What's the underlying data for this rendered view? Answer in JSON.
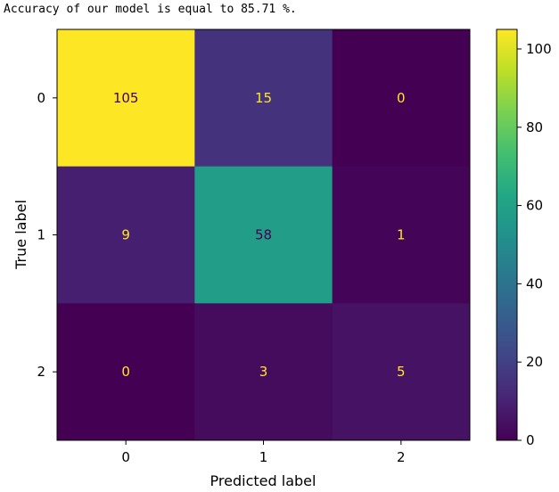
{
  "output": {
    "text": "Accuracy of our model is equal to 85.71 %."
  },
  "chart_data": {
    "type": "heatmap",
    "title": "",
    "xlabel": "Predicted label",
    "ylabel": "True label",
    "x_categories": [
      "0",
      "1",
      "2"
    ],
    "y_categories": [
      "0",
      "1",
      "2"
    ],
    "values": [
      [
        105,
        15,
        0
      ],
      [
        9,
        58,
        1
      ],
      [
        0,
        3,
        5
      ]
    ],
    "colormap": "viridis",
    "colorbar": {
      "range": [
        0,
        105
      ],
      "ticks": [
        0,
        20,
        40,
        60,
        80,
        100
      ]
    },
    "colors": {
      "light_text": "#fde725",
      "dark_text": "#440154"
    }
  }
}
